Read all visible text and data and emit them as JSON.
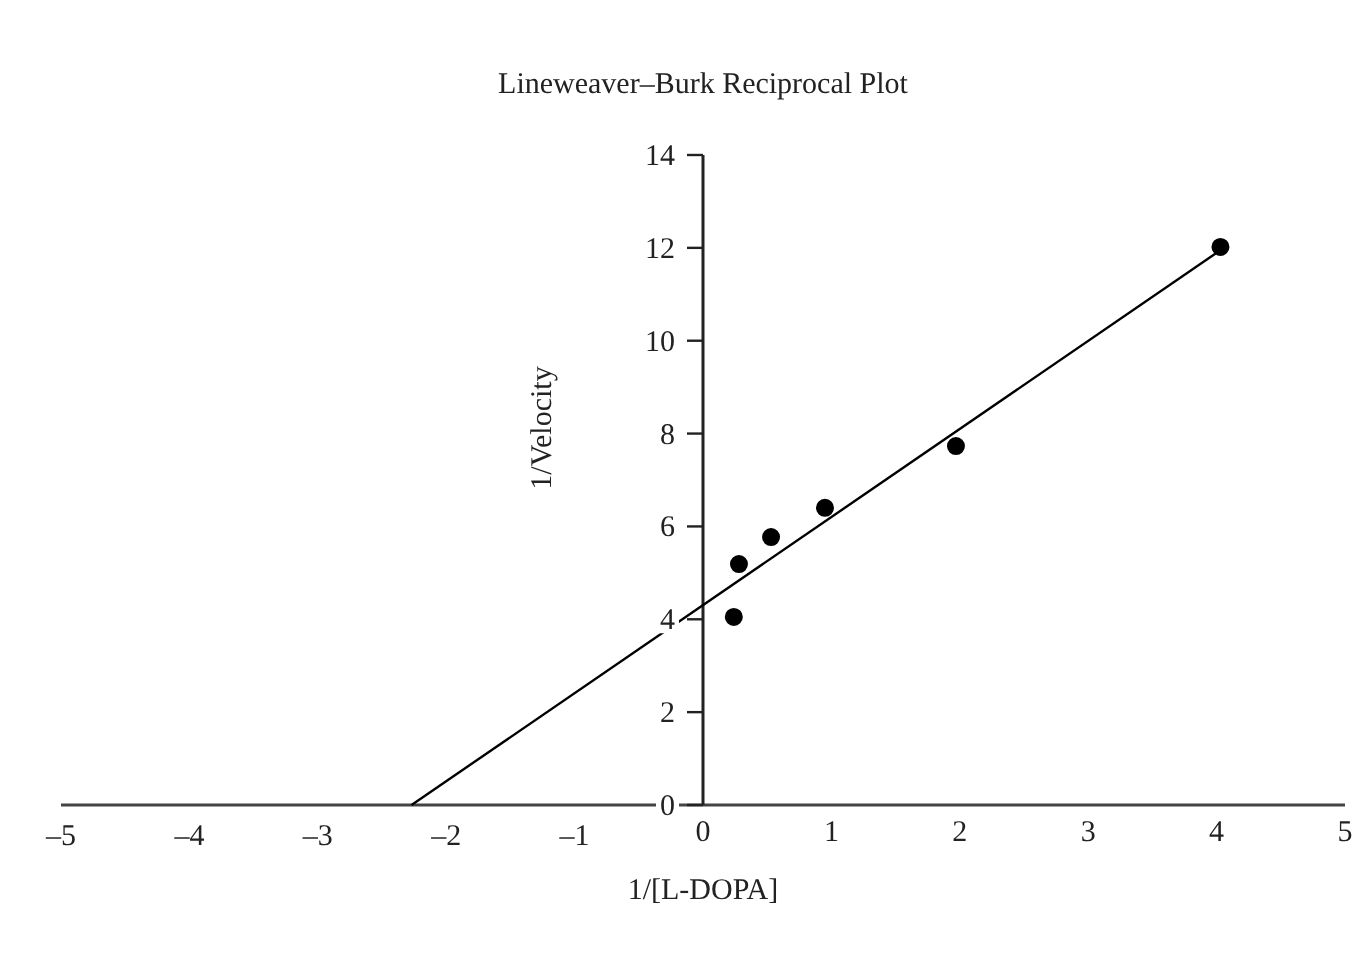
{
  "chart_data": {
    "type": "scatter",
    "title": "Lineweaver–Burk Reciprocal Plot",
    "xlabel": "1/[L-DOPA]",
    "ylabel": "1/Velocity",
    "series": [
      {
        "color": "#000000",
        "marker": "circle",
        "x": [
          0.24,
          0.28,
          0.53,
          0.95,
          1.97,
          4.03
        ],
        "values": [
          4.05,
          5.19,
          5.77,
          6.4,
          7.73,
          12.02
        ]
      },
      {
        "type": "line",
        "color": "#000000",
        "marker": "none",
        "line_style": "solid",
        "x": [
          -2.27,
          4.03
        ],
        "values": [
          0,
          11.95
        ]
      }
    ],
    "xlim": [
      -5,
      5
    ],
    "ylim": [
      0,
      14
    ],
    "xticks": [
      {
        "value": -5,
        "label": "–5"
      },
      {
        "value": -4,
        "label": "–4"
      },
      {
        "value": -3,
        "label": "–3"
      },
      {
        "value": -2,
        "label": "–2"
      },
      {
        "value": -1,
        "label": "–1"
      },
      0,
      1,
      2,
      3,
      4,
      5
    ],
    "yticks": [
      0,
      2,
      4,
      6,
      8,
      10,
      12,
      14
    ],
    "grid": false
  }
}
